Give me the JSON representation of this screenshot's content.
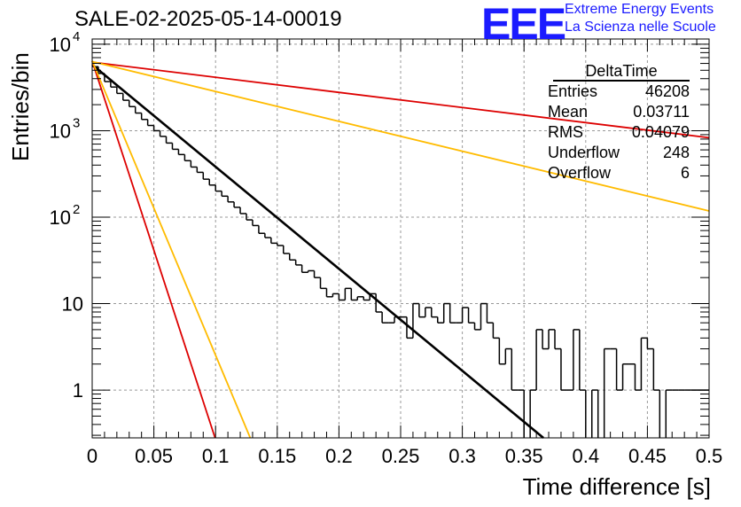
{
  "title": "SALE-02-2025-05-14-00019",
  "logo": {
    "text": "EEE",
    "line1": "Extreme Energy Events",
    "line2": "La Scienza nelle Scuole"
  },
  "stats": {
    "title": "DeltaTime",
    "rows": [
      {
        "label": "Entries",
        "value": "46208"
      },
      {
        "label": "Mean",
        "value": "0.03711"
      },
      {
        "label": "RMS",
        "value": "0.04079"
      },
      {
        "label": "Underflow",
        "value": "248"
      },
      {
        "label": "Overflow",
        "value": "6"
      }
    ]
  },
  "colors": {
    "red": "#dd0000",
    "orange": "#ffbb00",
    "black": "#000000",
    "grid": "#999999"
  },
  "chart_data": {
    "type": "line",
    "xlabel": "Time difference [s]",
    "ylabel": "Entries/bin",
    "xlim": [
      0,
      0.5
    ],
    "ylim": [
      0.28,
      11500
    ],
    "yscale": "log",
    "grid": true,
    "x_ticks": [
      {
        "value": 0,
        "label": "0"
      },
      {
        "value": 0.05,
        "label": "0.05"
      },
      {
        "value": 0.1,
        "label": "0.1"
      },
      {
        "value": 0.15,
        "label": "0.15"
      },
      {
        "value": 0.2,
        "label": "0.2"
      },
      {
        "value": 0.25,
        "label": "0.25"
      },
      {
        "value": 0.3,
        "label": "0.3"
      },
      {
        "value": 0.35,
        "label": "0.35"
      },
      {
        "value": 0.4,
        "label": "0.4"
      },
      {
        "value": 0.45,
        "label": "0.45"
      },
      {
        "value": 0.5,
        "label": "0.5"
      }
    ],
    "y_ticks": [
      {
        "value": 1,
        "label": "1",
        "exp": ""
      },
      {
        "value": 10,
        "label": "10",
        "exp": ""
      },
      {
        "value": 100,
        "label": "10",
        "exp": "2"
      },
      {
        "value": 1000,
        "label": "10",
        "exp": "3"
      },
      {
        "value": 10000,
        "label": "10",
        "exp": "4"
      }
    ],
    "histogram": {
      "bin_width": 0.005,
      "counts": [
        5500,
        4600,
        3700,
        3200,
        2700,
        2250,
        1900,
        1600,
        1350,
        1150,
        1000,
        860,
        720,
        610,
        530,
        450,
        380,
        330,
        275,
        235,
        200,
        175,
        150,
        130,
        110,
        93,
        80,
        65,
        58,
        50,
        47,
        38,
        32,
        28,
        23,
        24,
        20,
        15,
        12,
        13,
        11,
        15,
        11,
        12,
        11,
        13,
        8,
        6,
        6,
        7,
        7,
        4,
        10,
        7,
        9,
        7,
        6,
        10,
        6,
        6,
        9,
        6,
        5,
        10,
        6,
        4,
        2,
        3,
        1,
        1,
        0,
        1,
        5,
        3,
        5,
        3,
        1,
        1,
        5,
        1,
        0,
        1,
        0,
        3,
        3,
        1,
        2,
        2,
        1,
        4,
        3,
        1,
        0,
        1,
        1,
        1,
        1,
        1,
        1,
        1
      ]
    },
    "series": [
      {
        "color": "#000000",
        "x": [
          0,
          0.3657
        ],
        "y": [
          5800,
          0.28
        ]
      },
      {
        "color": "#dd0000",
        "x": [
          0,
          0.5
        ],
        "y": [
          6200,
          830
        ]
      },
      {
        "color": "#ffbb00",
        "x": [
          0,
          0.5
        ],
        "y": [
          6300,
          118
        ]
      },
      {
        "color": "#dd0000",
        "x": [
          0,
          0.0996
        ],
        "y": [
          6400,
          0.28
        ]
      },
      {
        "color": "#ffbb00",
        "x": [
          0,
          0.1281
        ],
        "y": [
          6400,
          0.28
        ]
      }
    ]
  }
}
